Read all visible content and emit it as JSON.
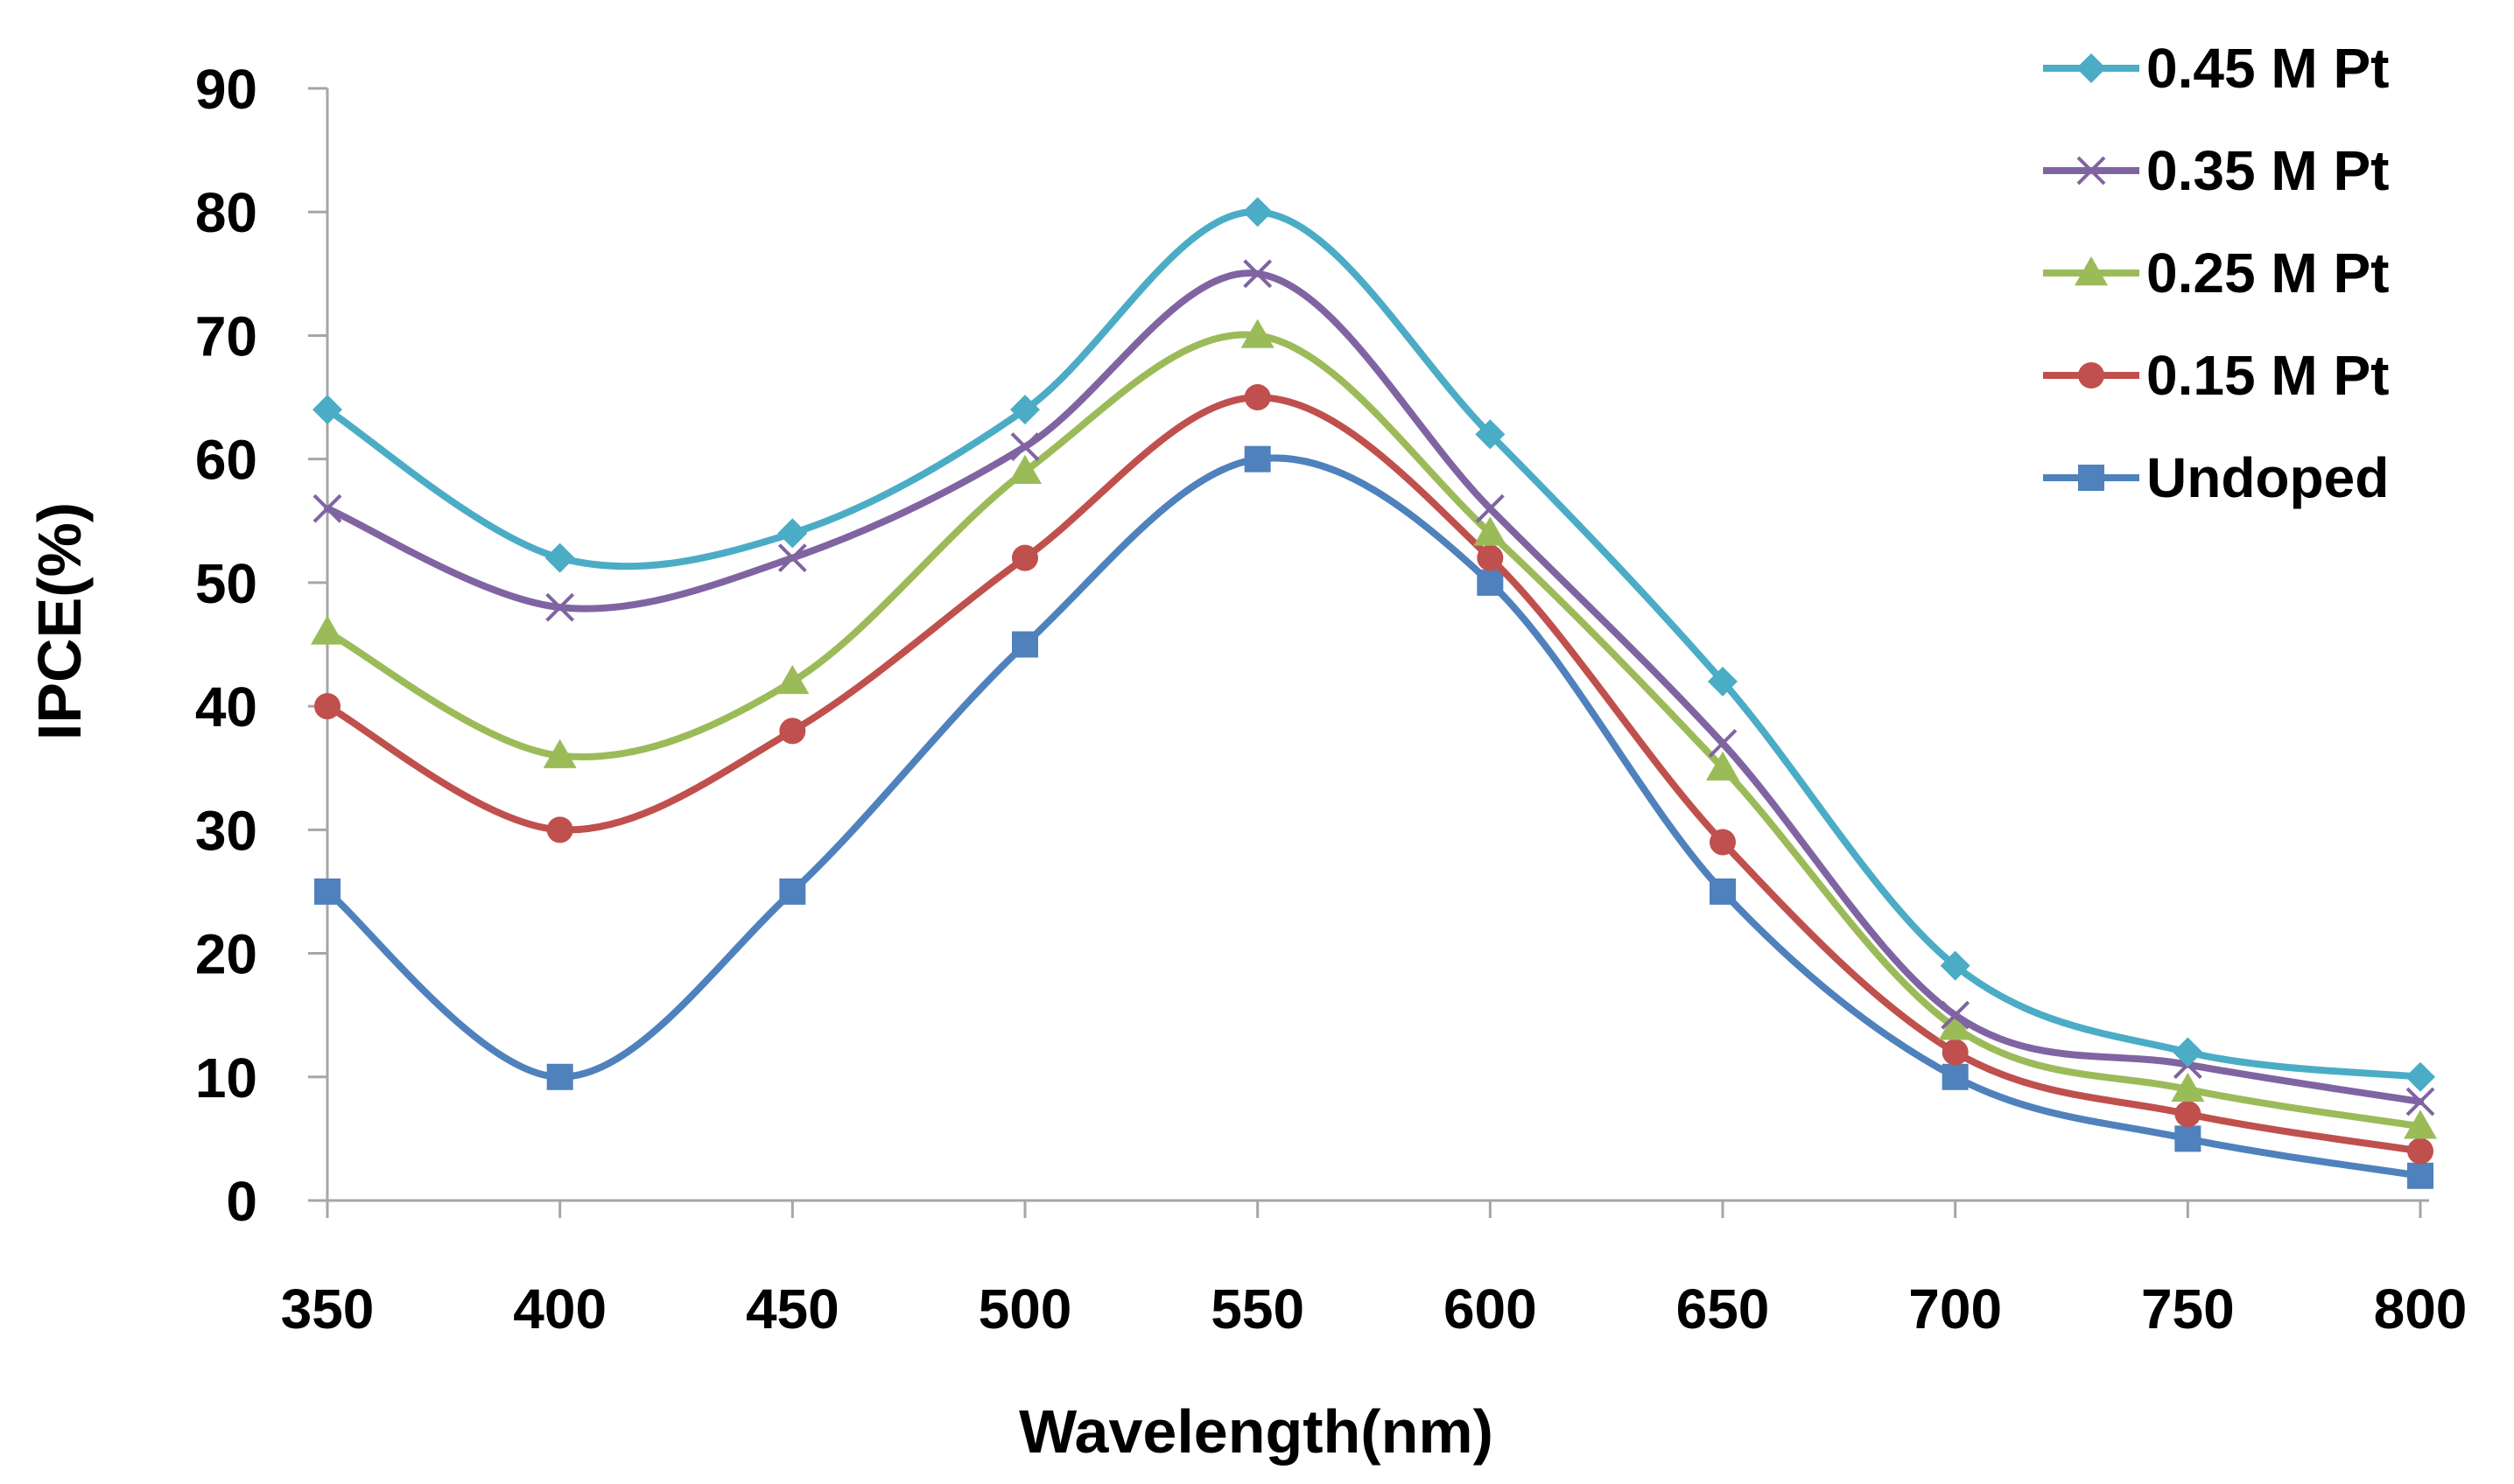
{
  "chart_data": {
    "type": "line",
    "title": "",
    "xlabel": "Wavelength(nm)",
    "ylabel": "IPCE(%)",
    "x": [
      350,
      400,
      450,
      500,
      550,
      600,
      650,
      700,
      750,
      800
    ],
    "x_tick_labels": [
      "350",
      "400",
      "450",
      "500",
      "550",
      "600",
      "650",
      "700",
      "750",
      "800"
    ],
    "y_tick_labels": [
      "0",
      "10",
      "20",
      "30",
      "40",
      "50",
      "60",
      "70",
      "80",
      "90"
    ],
    "ylim": [
      0,
      90
    ],
    "grid": false,
    "legend_position": "top-right",
    "series": [
      {
        "name": "0.45 M Pt",
        "color": "#4bacc6",
        "marker": "diamond",
        "values": [
          64,
          52,
          54,
          64,
          80,
          62,
          42,
          19,
          12,
          10
        ]
      },
      {
        "name": "0.35 M Pt",
        "color": "#8064a2",
        "marker": "x",
        "values": [
          56,
          48,
          52,
          61,
          75,
          56,
          37,
          15,
          11,
          8
        ]
      },
      {
        "name": "0.25 M Pt",
        "color": "#9bbb59",
        "marker": "triangle",
        "values": [
          46,
          36,
          42,
          59,
          70,
          54,
          35,
          14,
          9,
          6
        ]
      },
      {
        "name": "0.15 M Pt",
        "color": "#c0504d",
        "marker": "circle",
        "values": [
          40,
          30,
          38,
          52,
          65,
          52,
          29,
          12,
          7,
          4
        ]
      },
      {
        "name": "Undoped",
        "color": "#4f81bd",
        "marker": "square",
        "values": [
          25,
          10,
          25,
          45,
          60,
          50,
          25,
          10,
          5,
          2
        ]
      }
    ]
  }
}
